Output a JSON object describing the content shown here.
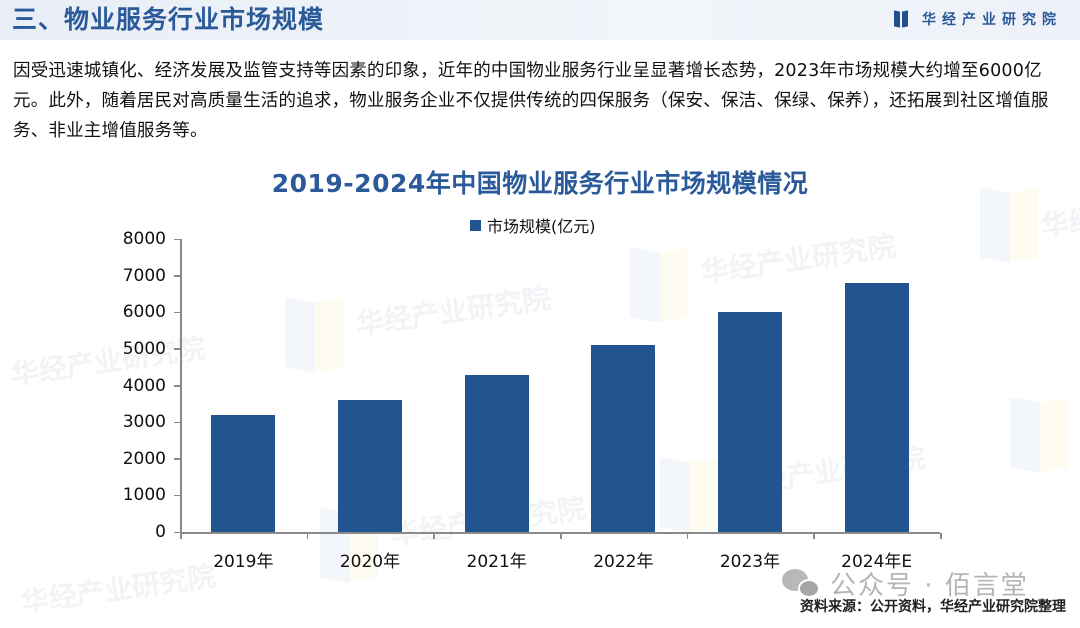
{
  "header": {
    "section_title": "三、物业服务行业市场规模",
    "brand_name": "华经产业研究院",
    "brand_logo_icon": "book-logo-icon"
  },
  "paragraph": {
    "text": "因受迅速城镇化、经济发展及监管支持等因素的印象，近年的中国物业服务行业呈显著增长态势，2023年市场规模大约增至6000亿元。此外，随着居民对高质量生活的追求，物业服务企业不仅提供传统的四保服务（保安、保洁、保绿、保养），还拓展到社区增值服务、非业主增值服务等。"
  },
  "chart_data": {
    "type": "bar",
    "title": "2019-2024年中国物业服务行业市场规模情况",
    "categories": [
      "2019年",
      "2020年",
      "2021年",
      "2022年",
      "2023年",
      "2024年E"
    ],
    "series": [
      {
        "name": "市场规模(亿元)",
        "values": [
          3200,
          3600,
          4300,
          5100,
          6000,
          6800
        ],
        "color": "#22548f"
      }
    ],
    "xlabel": "",
    "ylabel": "",
    "ylim": [
      0,
      8000
    ],
    "yticks": [
      "0",
      "1000",
      "2000",
      "3000",
      "4000",
      "5000",
      "6000",
      "7000",
      "8000"
    ],
    "grid": false,
    "legend_position": "top"
  },
  "watermark": {
    "text": "华经产业研究院"
  },
  "footer": {
    "wechat_label": "公众号 · 佰言堂",
    "wechat_icon": "wechat-icon",
    "source": "资料来源：公开资料，华经产业研究院整理"
  },
  "colors": {
    "title_blue": "#2b5a9a",
    "bar_blue": "#22548f",
    "axis_gray": "#8a8a8a"
  }
}
